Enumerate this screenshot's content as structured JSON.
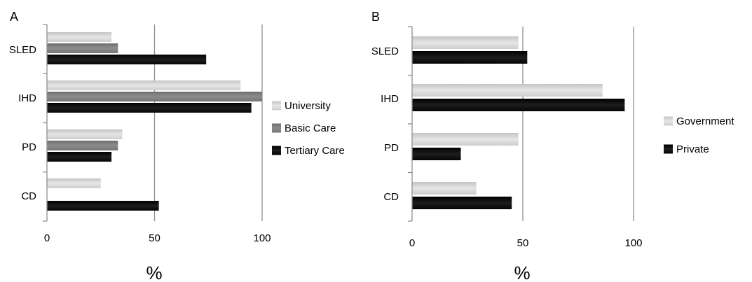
{
  "chart_data": [
    {
      "type": "bar",
      "orientation": "horizontal",
      "panel_label": "A",
      "title": "",
      "xlabel": "%",
      "ylabel": "",
      "xlim": [
        0,
        100
      ],
      "xticks": [
        "0",
        "50",
        "100"
      ],
      "grid": "vertical",
      "legend_position": "right",
      "categories": [
        "SLED",
        "IHD",
        "PD",
        "CD"
      ],
      "series": [
        {
          "name": "University",
          "color": "#dedede",
          "values": [
            30,
            90,
            35,
            25
          ]
        },
        {
          "name": "Basic Care",
          "color": "#808080",
          "values": [
            33,
            100,
            33,
            0
          ]
        },
        {
          "name": "Tertiary Care",
          "color": "#000000",
          "values": [
            74,
            95,
            30,
            52
          ]
        }
      ]
    },
    {
      "type": "bar",
      "orientation": "horizontal",
      "panel_label": "B",
      "title": "",
      "xlabel": "%",
      "ylabel": "",
      "xlim": [
        0,
        100
      ],
      "xticks": [
        "0",
        "50",
        "100"
      ],
      "grid": "vertical",
      "legend_position": "right",
      "categories": [
        "SLED",
        "IHD",
        "PD",
        "CD"
      ],
      "series": [
        {
          "name": "Government",
          "color": "#cfcfcf",
          "values": [
            48,
            86,
            48,
            29
          ]
        },
        {
          "name": "Private",
          "color": "#000000",
          "values": [
            52,
            96,
            22,
            45
          ]
        }
      ]
    }
  ]
}
